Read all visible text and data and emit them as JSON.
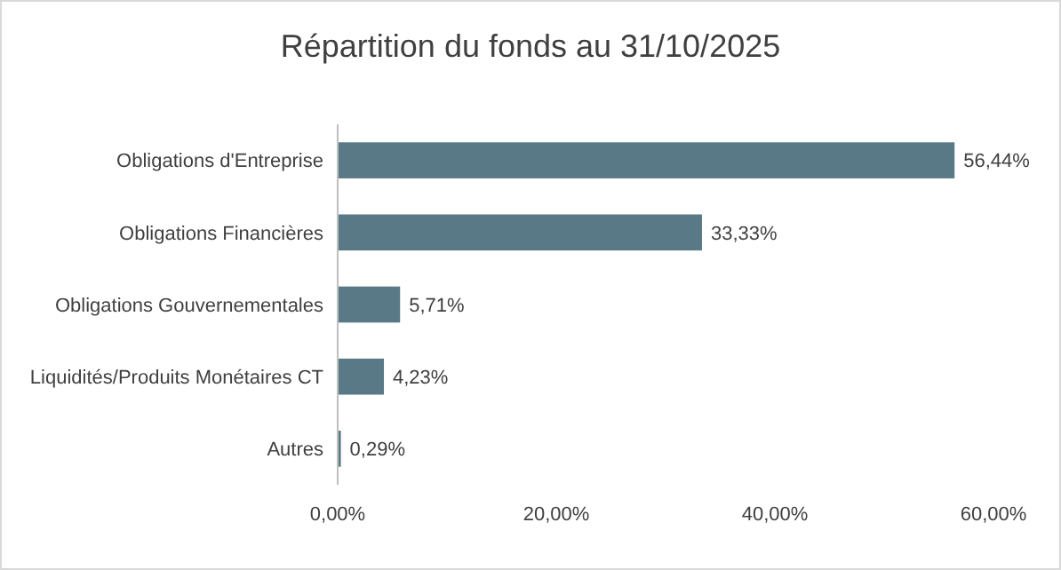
{
  "chart_data": {
    "type": "bar",
    "orientation": "horizontal",
    "title": "Répartition du fonds au 31/10/2025",
    "categories": [
      "Obligations d'Entreprise",
      "Obligations Financières",
      "Obligations Gouvernementales",
      "Liquidités/Produits Monétaires CT",
      "Autres"
    ],
    "values": [
      56.44,
      33.33,
      5.71,
      4.23,
      0.29
    ],
    "value_labels": [
      "56,44%",
      "33,33%",
      "5,71%",
      "4,23%",
      "0,29%"
    ],
    "color": "#587985",
    "xlim": [
      0,
      60
    ],
    "xticks": [
      {
        "value": 0,
        "label": "0,00%"
      },
      {
        "value": 20,
        "label": "20,00%"
      },
      {
        "value": 40,
        "label": "40,00%"
      },
      {
        "value": 60,
        "label": "60,00%"
      }
    ],
    "grid": false
  }
}
